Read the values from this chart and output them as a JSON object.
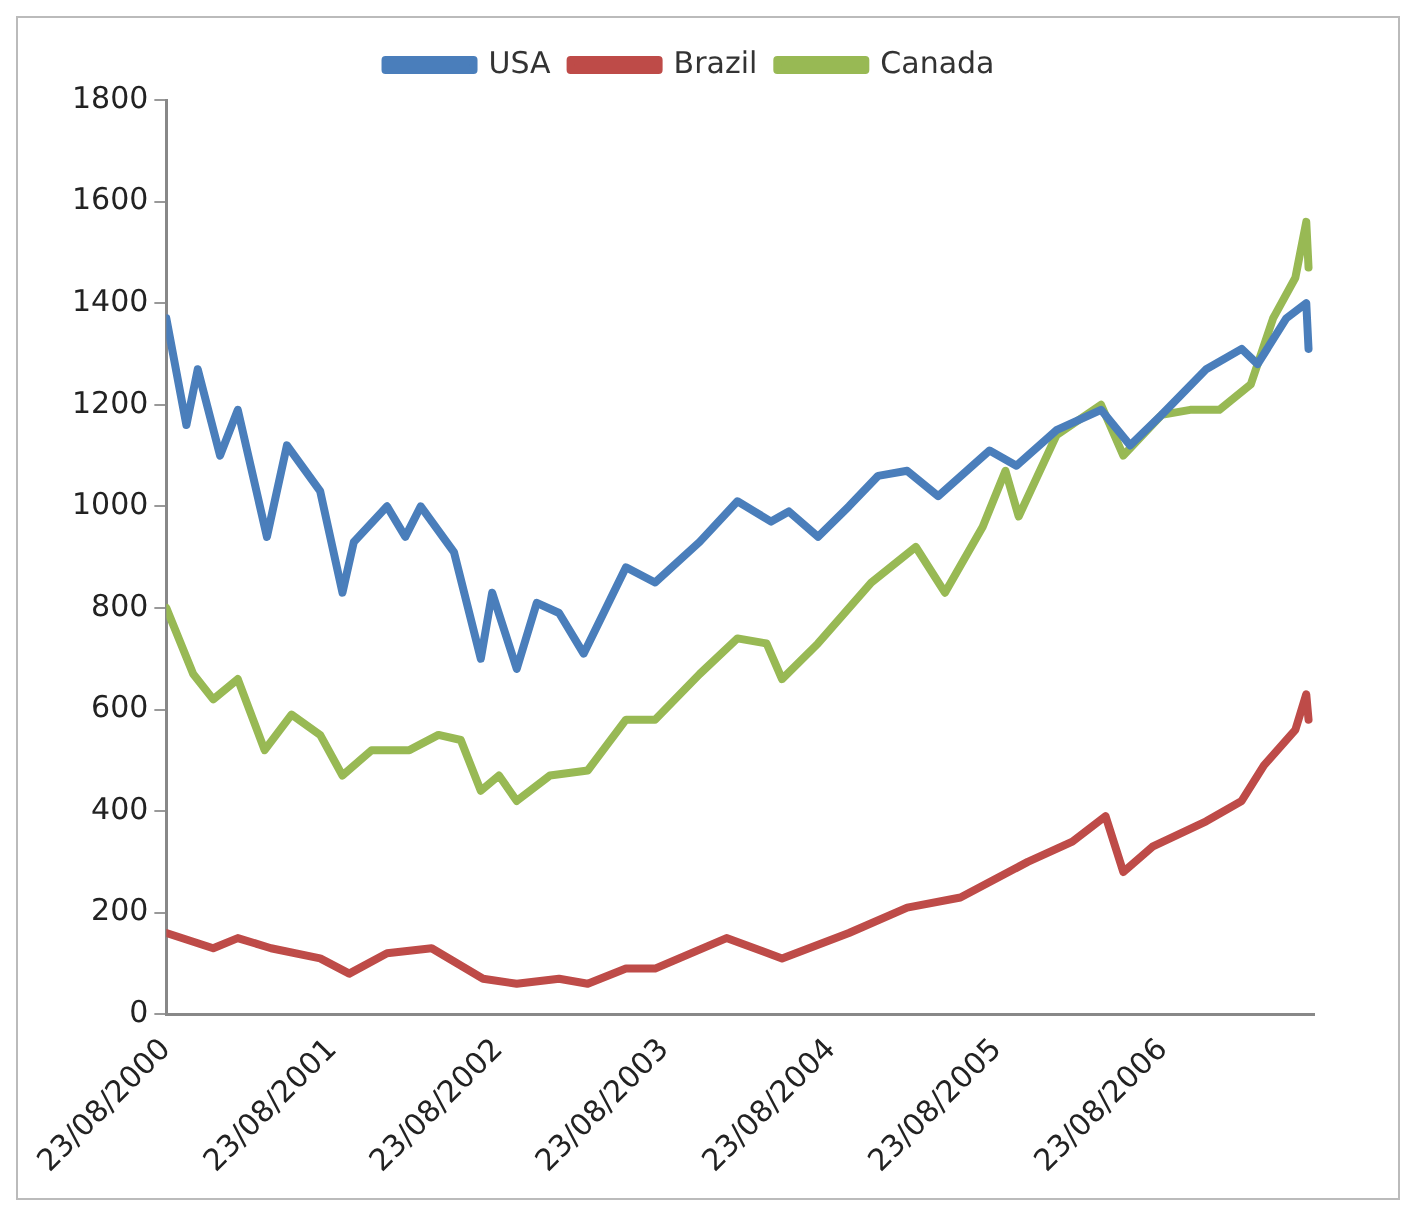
{
  "chart_data": {
    "type": "line",
    "legend": "top",
    "grid": false,
    "marker": "none",
    "line_style": "solid",
    "xlim": [
      "2000-08-23",
      "2007-07-20"
    ],
    "xticks": [
      {
        "value": "2000-08-23",
        "label": "23/08/2000"
      },
      {
        "value": "2001-08-23",
        "label": "23/08/2001"
      },
      {
        "value": "2002-08-23",
        "label": "23/08/2002"
      },
      {
        "value": "2003-08-23",
        "label": "23/08/2003"
      },
      {
        "value": "2004-08-23",
        "label": "23/08/2004"
      },
      {
        "value": "2005-08-23",
        "label": "23/08/2005"
      },
      {
        "value": "2006-08-23",
        "label": "23/08/2006"
      }
    ],
    "ylim": [
      0,
      1800
    ],
    "yticks": [
      0,
      200,
      400,
      600,
      800,
      1000,
      1200,
      1400,
      1600,
      1800
    ],
    "series": [
      {
        "name": "USA",
        "color": "#4a7ebb",
        "x": [
          "2000-08-23",
          "2000-10-06",
          "2000-10-31",
          "2000-12-19",
          "2001-01-27",
          "2001-04-01",
          "2001-05-15",
          "2001-07-27",
          "2001-09-14",
          "2001-10-09",
          "2001-12-21",
          "2002-01-30",
          "2002-03-05",
          "2002-05-17",
          "2002-07-15",
          "2002-08-09",
          "2002-10-02",
          "2002-11-15",
          "2003-01-03",
          "2003-02-26",
          "2003-05-30",
          "2003-08-02",
          "2003-11-08",
          "2004-01-30",
          "2004-04-13",
          "2004-05-22",
          "2004-07-25",
          "2004-10-01",
          "2004-12-04",
          "2005-02-06",
          "2005-04-15",
          "2005-08-06",
          "2005-10-04",
          "2005-12-31",
          "2006-04-08",
          "2006-06-11",
          "2006-08-19",
          "2006-11-25",
          "2007-02-11",
          "2007-03-18",
          "2007-05-20",
          "2007-07-03",
          "2007-07-08"
        ],
        "values": [
          1370,
          1160,
          1270,
          1100,
          1190,
          940,
          1120,
          1030,
          830,
          930,
          1000,
          940,
          1000,
          910,
          700,
          830,
          680,
          810,
          790,
          710,
          880,
          850,
          930,
          1010,
          970,
          990,
          940,
          1000,
          1060,
          1070,
          1020,
          1110,
          1080,
          1150,
          1190,
          1120,
          1180,
          1270,
          1310,
          1280,
          1370,
          1400,
          1310
        ]
      },
      {
        "name": "Brazil",
        "color": "#be4b48",
        "x": [
          "2000-08-23",
          "2000-12-04",
          "2001-01-27",
          "2001-04-10",
          "2001-07-27",
          "2001-09-29",
          "2001-12-21",
          "2002-03-29",
          "2002-07-20",
          "2002-10-02",
          "2003-01-03",
          "2003-03-07",
          "2003-05-30",
          "2003-08-02",
          "2004-01-06",
          "2004-05-07",
          "2004-10-01",
          "2005-02-06",
          "2005-06-03",
          "2005-10-29",
          "2006-02-04",
          "2006-04-18",
          "2006-05-27",
          "2006-07-30",
          "2006-11-25",
          "2007-02-11",
          "2007-04-01",
          "2007-06-09",
          "2007-07-03",
          "2007-07-08"
        ],
        "values": [
          160,
          130,
          150,
          130,
          110,
          80,
          120,
          130,
          70,
          60,
          70,
          60,
          90,
          90,
          150,
          110,
          160,
          210,
          230,
          300,
          340,
          390,
          280,
          330,
          380,
          420,
          490,
          560,
          630,
          580
        ]
      },
      {
        "name": "Canada",
        "color": "#98b954",
        "x": [
          "2000-08-23",
          "2000-10-21",
          "2000-12-04",
          "2001-01-27",
          "2001-03-27",
          "2001-05-25",
          "2001-07-27",
          "2001-09-14",
          "2001-11-17",
          "2002-02-08",
          "2002-04-13",
          "2002-06-01",
          "2002-07-15",
          "2002-08-24",
          "2002-10-02",
          "2002-12-14",
          "2003-03-07",
          "2003-05-30",
          "2003-08-02",
          "2003-11-08",
          "2004-01-30",
          "2004-04-03",
          "2004-05-07",
          "2004-07-25",
          "2004-11-19",
          "2005-02-25",
          "2005-04-30",
          "2005-07-22",
          "2005-09-10",
          "2005-10-09",
          "2005-12-31",
          "2006-04-08",
          "2006-05-27",
          "2006-08-19",
          "2006-10-21",
          "2006-12-24",
          "2007-03-03",
          "2007-04-21",
          "2007-06-09",
          "2007-07-03",
          "2007-07-08"
        ],
        "values": [
          800,
          670,
          620,
          660,
          520,
          590,
          550,
          470,
          520,
          520,
          550,
          540,
          440,
          470,
          420,
          470,
          480,
          580,
          580,
          670,
          740,
          730,
          660,
          730,
          850,
          920,
          830,
          960,
          1070,
          980,
          1140,
          1200,
          1100,
          1180,
          1190,
          1190,
          1240,
          1370,
          1450,
          1560,
          1470
        ]
      }
    ]
  }
}
